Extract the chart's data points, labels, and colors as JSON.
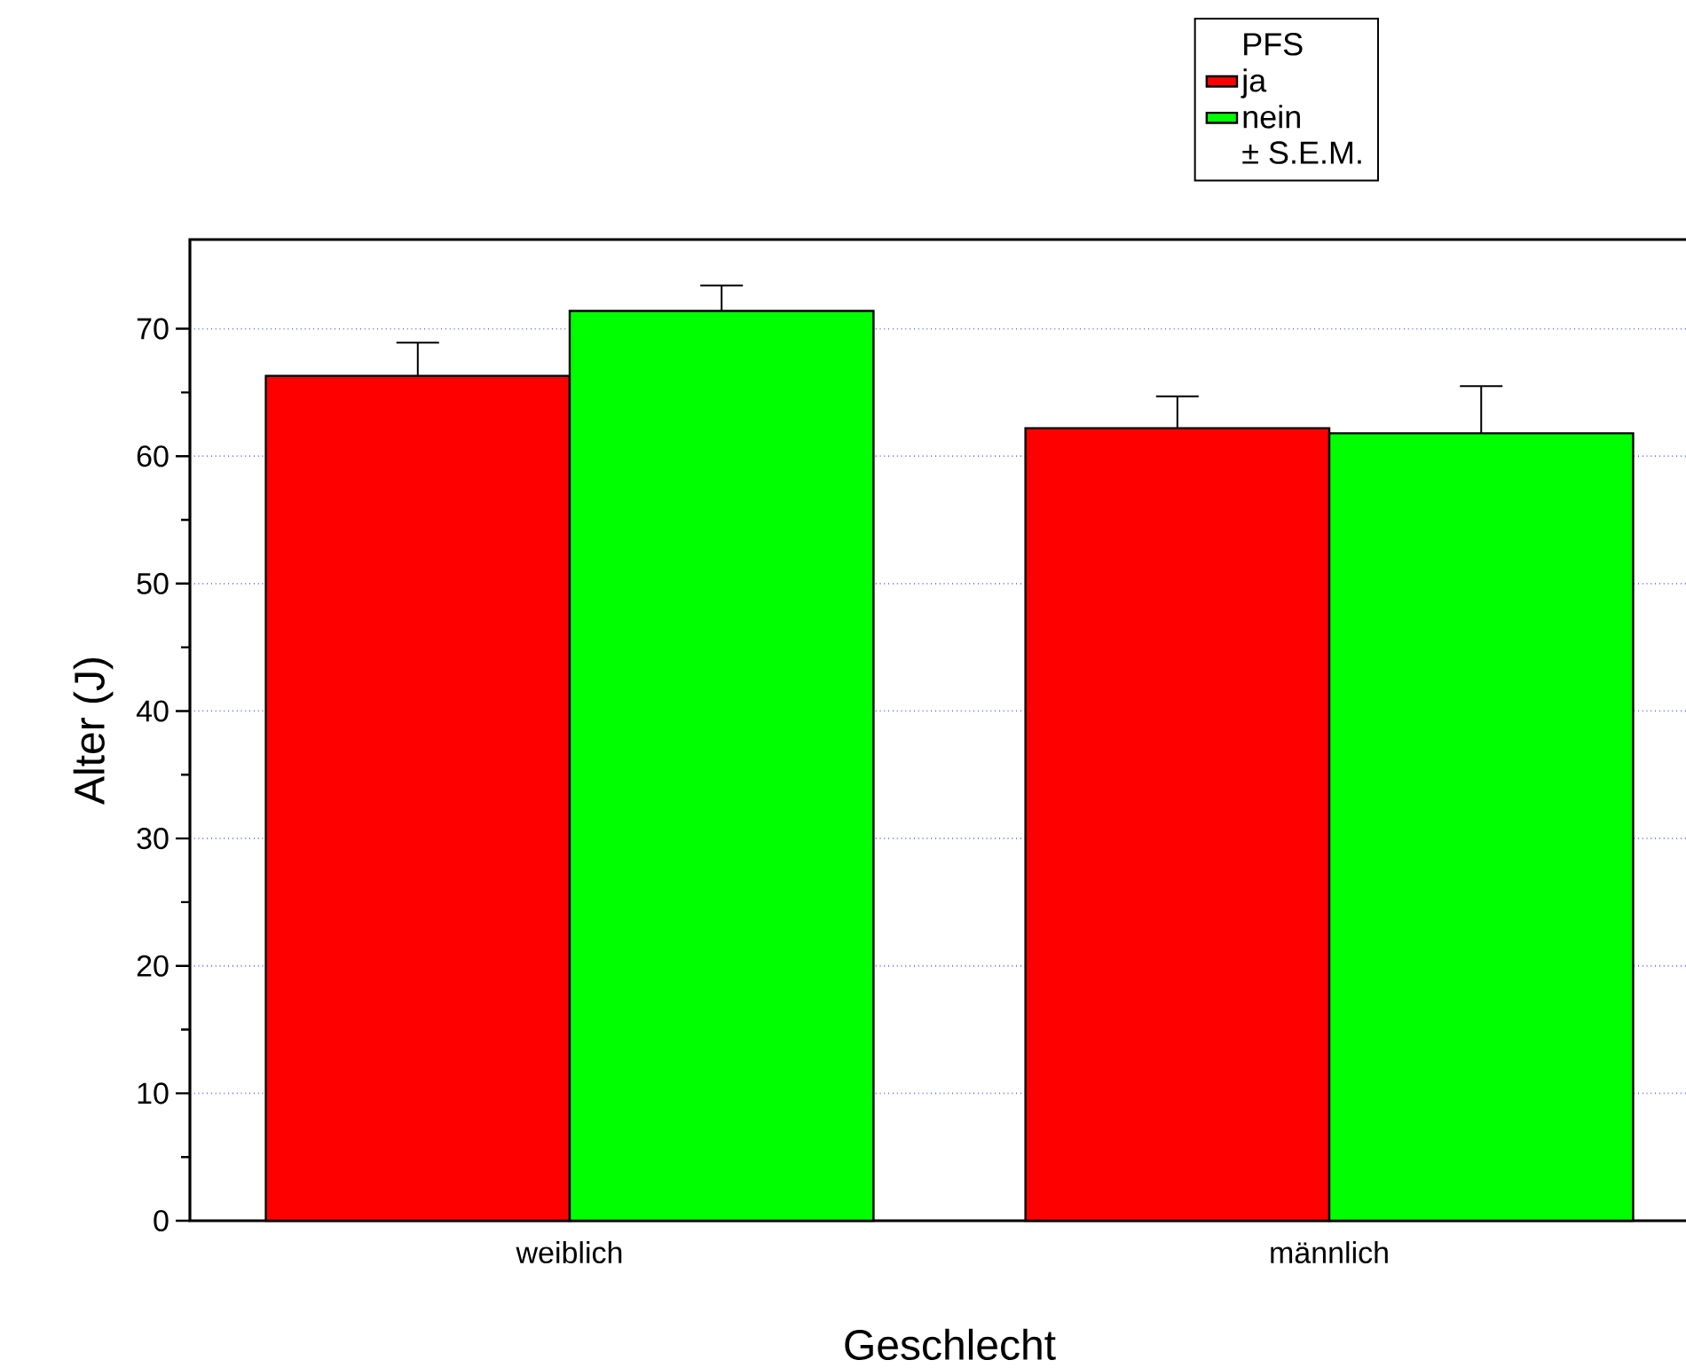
{
  "chart_data": {
    "type": "bar",
    "xlabel": "Geschlecht",
    "ylabel": "Alter (J)",
    "legend_title": "PFS",
    "categories": [
      "weiblich",
      "männlich"
    ],
    "series": [
      {
        "name": "ja",
        "color": "#ff0000",
        "values": [
          66.3,
          62.2
        ],
        "errors": [
          2.6,
          2.5
        ]
      },
      {
        "name": "nein",
        "color": "#00ff00",
        "values": [
          71.4,
          61.8
        ],
        "errors": [
          2.0,
          3.7
        ]
      }
    ],
    "ylim": [
      0,
      77
    ],
    "yticks": [
      0,
      10,
      20,
      30,
      40,
      50,
      60,
      70
    ],
    "grid": "y",
    "legend": "top",
    "annotations": [
      "± S.E.M."
    ]
  }
}
